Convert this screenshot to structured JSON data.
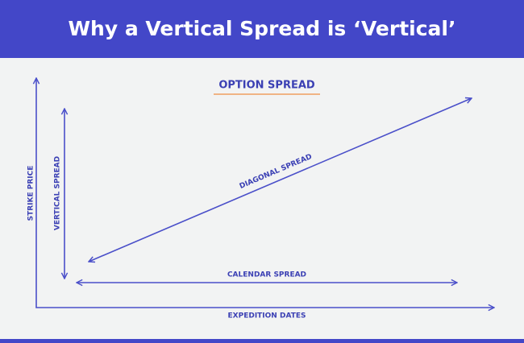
{
  "header": {
    "title": "Why a Vertical Spread is ‘Vertical’"
  },
  "diagram": {
    "heading": "OPTION SPREAD",
    "y_axis_label": "STRIKE PRICE",
    "x_axis_label": "EXPEDITION DATES",
    "arrows": [
      {
        "label": "VERTICAL SPREAD"
      },
      {
        "label": "DIAGONAL SPREAD"
      },
      {
        "label": "CALENDAR SPREAD"
      }
    ]
  }
}
